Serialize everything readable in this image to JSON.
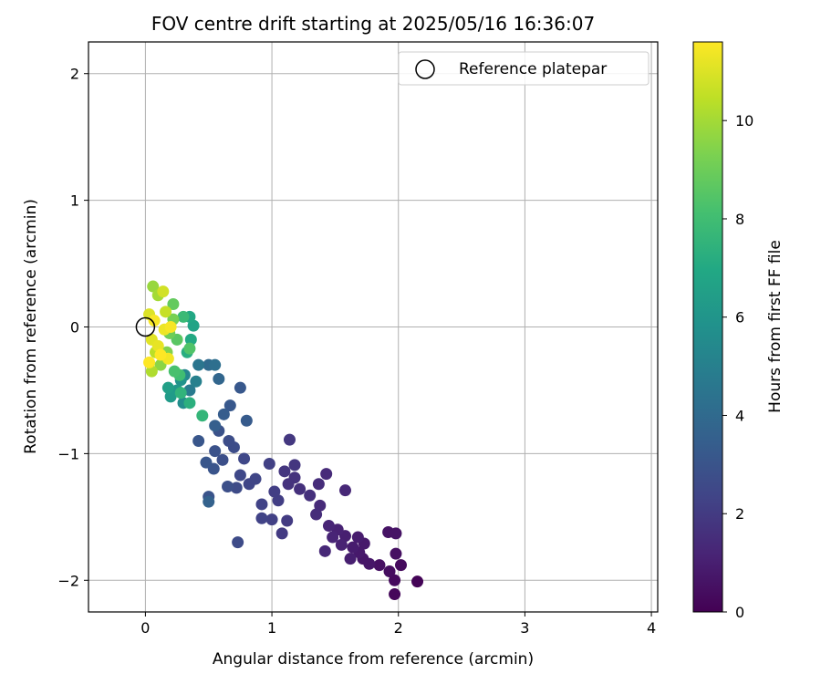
{
  "chart_data": {
    "type": "scatter",
    "title": "FOV centre drift starting at 2025/05/16 16:36:07",
    "xlabel": "Angular distance from reference (arcmin)",
    "ylabel": "Rotation from reference (arcmin)",
    "xlim": [
      -0.45,
      4.05
    ],
    "ylim": [
      -2.25,
      2.25
    ],
    "xticks": [
      0,
      1,
      2,
      3,
      4
    ],
    "yticks": [
      -2,
      -1,
      0,
      1,
      2
    ],
    "grid": true,
    "legend_position": "top-right",
    "reference": {
      "label": "Reference platepar",
      "x": 0,
      "y": 0
    },
    "colorbar": {
      "label": "Hours from first FF file",
      "min": 0,
      "max": 11.6,
      "ticks": [
        0,
        2,
        4,
        6,
        8,
        10
      ],
      "colormap": "viridis"
    },
    "points": [
      {
        "x": 2.15,
        "y": -2.01,
        "h": 0.1
      },
      {
        "x": 1.97,
        "y": -2.11,
        "h": 0.2
      },
      {
        "x": 1.97,
        "y": -2.0,
        "h": 0.3
      },
      {
        "x": 2.02,
        "y": -1.88,
        "h": 0.3
      },
      {
        "x": 1.93,
        "y": -1.93,
        "h": 0.4
      },
      {
        "x": 1.85,
        "y": -1.88,
        "h": 0.5
      },
      {
        "x": 1.98,
        "y": -1.79,
        "h": 0.5
      },
      {
        "x": 1.92,
        "y": -1.62,
        "h": 0.6
      },
      {
        "x": 1.98,
        "y": -1.63,
        "h": 0.6
      },
      {
        "x": 1.77,
        "y": -1.87,
        "h": 0.7
      },
      {
        "x": 1.72,
        "y": -1.83,
        "h": 0.7
      },
      {
        "x": 1.73,
        "y": -1.71,
        "h": 0.8
      },
      {
        "x": 1.69,
        "y": -1.78,
        "h": 0.8
      },
      {
        "x": 1.68,
        "y": -1.66,
        "h": 0.9
      },
      {
        "x": 1.64,
        "y": -1.74,
        "h": 0.9
      },
      {
        "x": 1.62,
        "y": -1.83,
        "h": 1.0
      },
      {
        "x": 1.58,
        "y": -1.65,
        "h": 1.0
      },
      {
        "x": 1.55,
        "y": -1.72,
        "h": 1.1
      },
      {
        "x": 1.52,
        "y": -1.6,
        "h": 1.1
      },
      {
        "x": 1.48,
        "y": -1.66,
        "h": 1.2
      },
      {
        "x": 1.45,
        "y": -1.57,
        "h": 1.2
      },
      {
        "x": 1.42,
        "y": -1.77,
        "h": 1.3
      },
      {
        "x": 1.58,
        "y": -1.29,
        "h": 1.3
      },
      {
        "x": 1.43,
        "y": -1.16,
        "h": 1.4
      },
      {
        "x": 1.38,
        "y": -1.41,
        "h": 1.4
      },
      {
        "x": 1.35,
        "y": -1.48,
        "h": 1.5
      },
      {
        "x": 1.37,
        "y": -1.24,
        "h": 1.5
      },
      {
        "x": 1.3,
        "y": -1.33,
        "h": 1.6
      },
      {
        "x": 1.22,
        "y": -1.28,
        "h": 1.6
      },
      {
        "x": 1.18,
        "y": -1.19,
        "h": 1.7
      },
      {
        "x": 1.13,
        "y": -1.24,
        "h": 1.7
      },
      {
        "x": 1.1,
        "y": -1.14,
        "h": 1.8
      },
      {
        "x": 1.18,
        "y": -1.09,
        "h": 1.8
      },
      {
        "x": 1.14,
        "y": -0.89,
        "h": 1.9
      },
      {
        "x": 1.12,
        "y": -1.53,
        "h": 2.0
      },
      {
        "x": 1.08,
        "y": -1.63,
        "h": 2.0
      },
      {
        "x": 1.05,
        "y": -1.37,
        "h": 2.1
      },
      {
        "x": 1.02,
        "y": -1.3,
        "h": 2.1
      },
      {
        "x": 0.98,
        "y": -1.08,
        "h": 2.2
      },
      {
        "x": 1.0,
        "y": -1.52,
        "h": 2.2
      },
      {
        "x": 0.92,
        "y": -1.51,
        "h": 2.3
      },
      {
        "x": 0.92,
        "y": -1.4,
        "h": 2.3
      },
      {
        "x": 0.87,
        "y": -1.2,
        "h": 2.4
      },
      {
        "x": 0.82,
        "y": -1.24,
        "h": 2.4
      },
      {
        "x": 0.78,
        "y": -1.04,
        "h": 2.5
      },
      {
        "x": 0.75,
        "y": -1.17,
        "h": 2.5
      },
      {
        "x": 0.73,
        "y": -1.7,
        "h": 2.6
      },
      {
        "x": 0.72,
        "y": -1.27,
        "h": 2.6
      },
      {
        "x": 0.7,
        "y": -0.95,
        "h": 2.7
      },
      {
        "x": 0.66,
        "y": -0.9,
        "h": 2.7
      },
      {
        "x": 0.65,
        "y": -1.26,
        "h": 2.8
      },
      {
        "x": 0.61,
        "y": -1.05,
        "h": 2.8
      },
      {
        "x": 0.58,
        "y": -0.82,
        "h": 2.9
      },
      {
        "x": 0.55,
        "y": -0.98,
        "h": 2.9
      },
      {
        "x": 0.54,
        "y": -1.12,
        "h": 3.0
      },
      {
        "x": 0.5,
        "y": -1.34,
        "h": 3.0
      },
      {
        "x": 0.48,
        "y": -1.07,
        "h": 3.1
      },
      {
        "x": 0.42,
        "y": -0.9,
        "h": 3.1
      },
      {
        "x": 0.67,
        "y": -0.62,
        "h": 3.2
      },
      {
        "x": 0.75,
        "y": -0.48,
        "h": 3.2
      },
      {
        "x": 0.8,
        "y": -0.74,
        "h": 3.3
      },
      {
        "x": 0.62,
        "y": -0.69,
        "h": 3.4
      },
      {
        "x": 0.55,
        "y": -0.78,
        "h": 3.5
      },
      {
        "x": 0.5,
        "y": -1.38,
        "h": 3.6
      },
      {
        "x": 0.58,
        "y": -0.41,
        "h": 3.8
      },
      {
        "x": 0.5,
        "y": -0.3,
        "h": 4.0
      },
      {
        "x": 0.55,
        "y": -0.3,
        "h": 4.2
      },
      {
        "x": 0.42,
        "y": -0.3,
        "h": 4.5
      },
      {
        "x": 0.35,
        "y": -0.5,
        "h": 4.8
      },
      {
        "x": 0.4,
        "y": -0.43,
        "h": 5.0
      },
      {
        "x": 0.31,
        "y": -0.38,
        "h": 5.3
      },
      {
        "x": 0.3,
        "y": -0.6,
        "h": 5.6
      },
      {
        "x": 0.28,
        "y": -0.42,
        "h": 5.9
      },
      {
        "x": 0.25,
        "y": -0.5,
        "h": 6.1
      },
      {
        "x": 0.2,
        "y": -0.55,
        "h": 6.3
      },
      {
        "x": 0.18,
        "y": -0.48,
        "h": 6.5
      },
      {
        "x": 0.38,
        "y": 0.01,
        "h": 6.7
      },
      {
        "x": 0.35,
        "y": 0.08,
        "h": 6.9
      },
      {
        "x": 0.36,
        "y": -0.1,
        "h": 7.0
      },
      {
        "x": 0.33,
        "y": -0.2,
        "h": 7.2
      },
      {
        "x": 0.35,
        "y": -0.6,
        "h": 7.3
      },
      {
        "x": 0.28,
        "y": -0.52,
        "h": 7.5
      },
      {
        "x": 0.45,
        "y": -0.7,
        "h": 7.6
      },
      {
        "x": 0.3,
        "y": 0.08,
        "h": 7.8
      },
      {
        "x": 0.27,
        "y": -0.38,
        "h": 8.0
      },
      {
        "x": 0.23,
        "y": -0.35,
        "h": 8.2
      },
      {
        "x": 0.35,
        "y": -0.17,
        "h": 8.4
      },
      {
        "x": 0.25,
        "y": -0.1,
        "h": 8.6
      },
      {
        "x": 0.22,
        "y": 0.18,
        "h": 8.8
      },
      {
        "x": 0.19,
        "y": -0.05,
        "h": 9.0
      },
      {
        "x": 0.22,
        "y": 0.06,
        "h": 9.2
      },
      {
        "x": 0.17,
        "y": -0.2,
        "h": 9.4
      },
      {
        "x": 0.12,
        "y": -0.3,
        "h": 9.6
      },
      {
        "x": 0.06,
        "y": 0.32,
        "h": 9.8
      },
      {
        "x": 0.1,
        "y": 0.25,
        "h": 10.0
      },
      {
        "x": 0.05,
        "y": -0.35,
        "h": 10.2
      },
      {
        "x": 0.08,
        "y": -0.2,
        "h": 10.4
      },
      {
        "x": 0.16,
        "y": 0.12,
        "h": 10.6
      },
      {
        "x": 0.14,
        "y": 0.28,
        "h": 10.8
      },
      {
        "x": 0.03,
        "y": 0.1,
        "h": 11.0
      },
      {
        "x": 0.05,
        "y": -0.1,
        "h": 11.1
      },
      {
        "x": 0.1,
        "y": -0.15,
        "h": 11.2
      },
      {
        "x": 0.15,
        "y": -0.02,
        "h": 11.3
      },
      {
        "x": 0.18,
        "y": -0.25,
        "h": 11.4
      },
      {
        "x": 0.07,
        "y": 0.05,
        "h": 11.5
      },
      {
        "x": 0.2,
        "y": 0.0,
        "h": 11.5
      },
      {
        "x": 0.12,
        "y": -0.22,
        "h": 11.6
      },
      {
        "x": 0.03,
        "y": -0.28,
        "h": 11.6
      }
    ]
  }
}
